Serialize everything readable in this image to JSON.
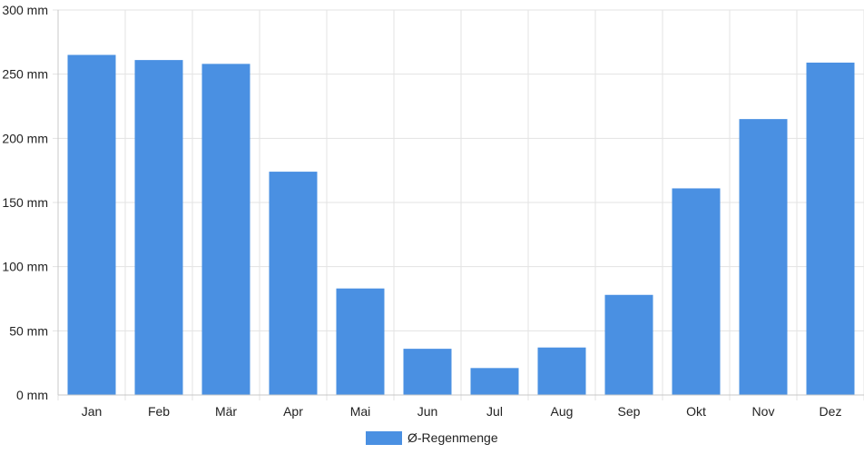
{
  "chart_data": {
    "type": "bar",
    "categories": [
      "Jan",
      "Feb",
      "Mär",
      "Apr",
      "Mai",
      "Jun",
      "Jul",
      "Aug",
      "Sep",
      "Okt",
      "Nov",
      "Dez"
    ],
    "series": [
      {
        "name": "Ø-Regenmenge",
        "color": "#4a90e2",
        "values": [
          265,
          261,
          258,
          174,
          83,
          36,
          21,
          37,
          78,
          161,
          215,
          259
        ]
      }
    ],
    "y_ticks": [
      "0 mm",
      "50 mm",
      "100 mm",
      "150 mm",
      "200 mm",
      "250 mm",
      "300 mm"
    ],
    "ylim": [
      0,
      300
    ],
    "unit": "mm",
    "grid": true,
    "legend_position": "bottom-center"
  }
}
